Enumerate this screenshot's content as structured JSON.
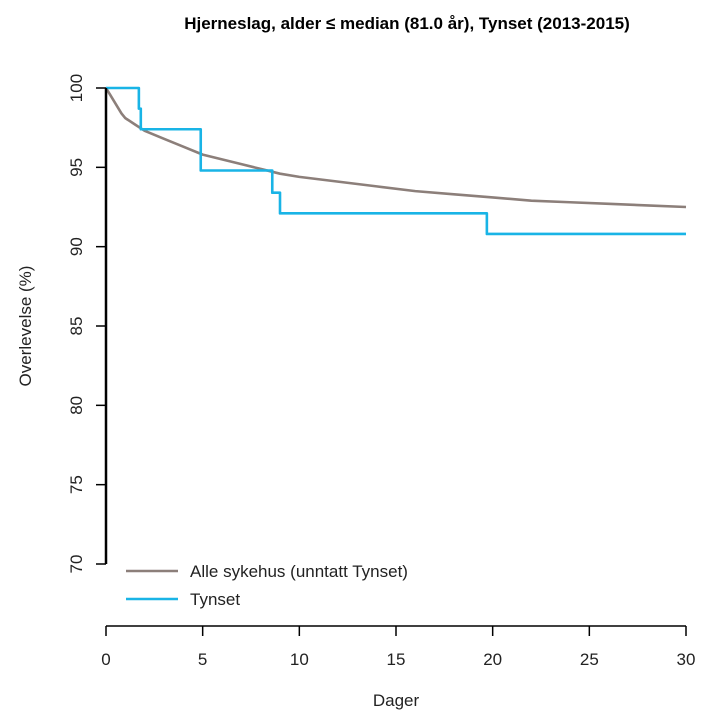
{
  "chart_data": {
    "type": "line",
    "title": "Hjerneslag, alder ≤ median (81.0 år), Tynset (2013-2015)",
    "xlabel": "Dager",
    "ylabel": "Overlevelse (%)",
    "xlim": [
      0,
      30
    ],
    "ylim": [
      70,
      100
    ],
    "xticks": [
      0,
      5,
      10,
      15,
      20,
      25,
      30
    ],
    "yticks": [
      70,
      75,
      80,
      85,
      90,
      95,
      100
    ],
    "grid": false,
    "legend_position": "bottom-left",
    "series": [
      {
        "name": "Alle sykehus (unntatt Tynset)",
        "color": "#8c7f7a",
        "step": false,
        "x": [
          0,
          0.2,
          0.4,
          0.6,
          0.8,
          1.0,
          1.5,
          2,
          3,
          4,
          5,
          6,
          7,
          8,
          9,
          10,
          12,
          14,
          16,
          18,
          20,
          22,
          24,
          26,
          28,
          30
        ],
        "y": [
          100,
          99.6,
          99.2,
          98.8,
          98.4,
          98.1,
          97.7,
          97.3,
          96.8,
          96.3,
          95.8,
          95.5,
          95.2,
          94.9,
          94.6,
          94.4,
          94.1,
          93.8,
          93.5,
          93.3,
          93.1,
          92.9,
          92.8,
          92.7,
          92.6,
          92.5
        ]
      },
      {
        "name": "Tynset",
        "color": "#19b4e6",
        "step": true,
        "x": [
          0,
          1.7,
          1.8,
          4.9,
          8.6,
          9.0,
          19.7,
          30
        ],
        "y": [
          100,
          98.7,
          97.4,
          94.8,
          93.4,
          92.1,
          90.8,
          90.8
        ]
      }
    ]
  }
}
